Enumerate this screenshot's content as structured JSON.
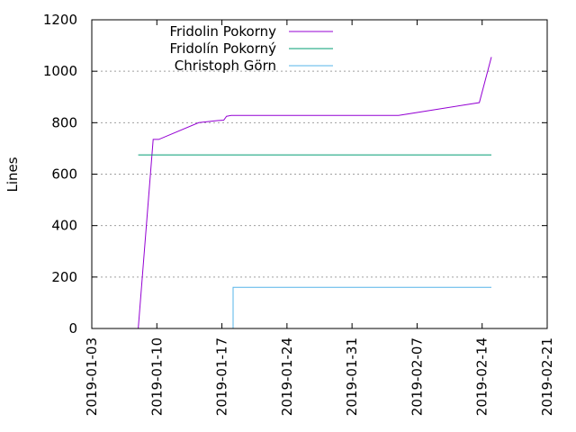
{
  "chart_data": {
    "type": "line",
    "ylabel": "Lines",
    "xlabel": "",
    "title": "",
    "ylim": [
      0,
      1200
    ],
    "xlim": [
      "2019-01-03",
      "2019-02-21"
    ],
    "yticks": [
      "0",
      "200",
      "400",
      "600",
      "800",
      "1000",
      "1200"
    ],
    "xticks": [
      "2019-01-03",
      "2019-01-10",
      "2019-01-17",
      "2019-01-24",
      "2019-01-31",
      "2019-02-07",
      "2019-02-14",
      "2019-02-21"
    ],
    "grid": "dotted horizontal",
    "legend_position": "top-left",
    "series": [
      {
        "name": "Fridolin Pokorny",
        "color": "#9400d3",
        "points": [
          [
            "2019-01-08",
            0
          ],
          [
            "2019-01-09.6",
            735
          ],
          [
            "2019-01-10.2",
            735
          ],
          [
            "2019-01-14.5",
            800
          ],
          [
            "2019-01-16.5",
            808
          ],
          [
            "2019-01-17.2",
            810
          ],
          [
            "2019-01-17.5",
            825
          ],
          [
            "2019-01-18",
            828
          ],
          [
            "2019-02-05",
            828
          ],
          [
            "2019-02-13.7",
            878
          ],
          [
            "2019-02-15",
            1055
          ]
        ]
      },
      {
        "name": "Fridolín Pokorný",
        "color": "#009e73",
        "points": [
          [
            "2019-01-08",
            675
          ],
          [
            "2019-02-15",
            675
          ]
        ]
      },
      {
        "name": "Christoph Görn",
        "color": "#56b4e9",
        "points": [
          [
            "2019-01-18.2",
            0
          ],
          [
            "2019-01-18.2",
            160
          ],
          [
            "2019-02-15",
            160
          ]
        ]
      }
    ]
  }
}
